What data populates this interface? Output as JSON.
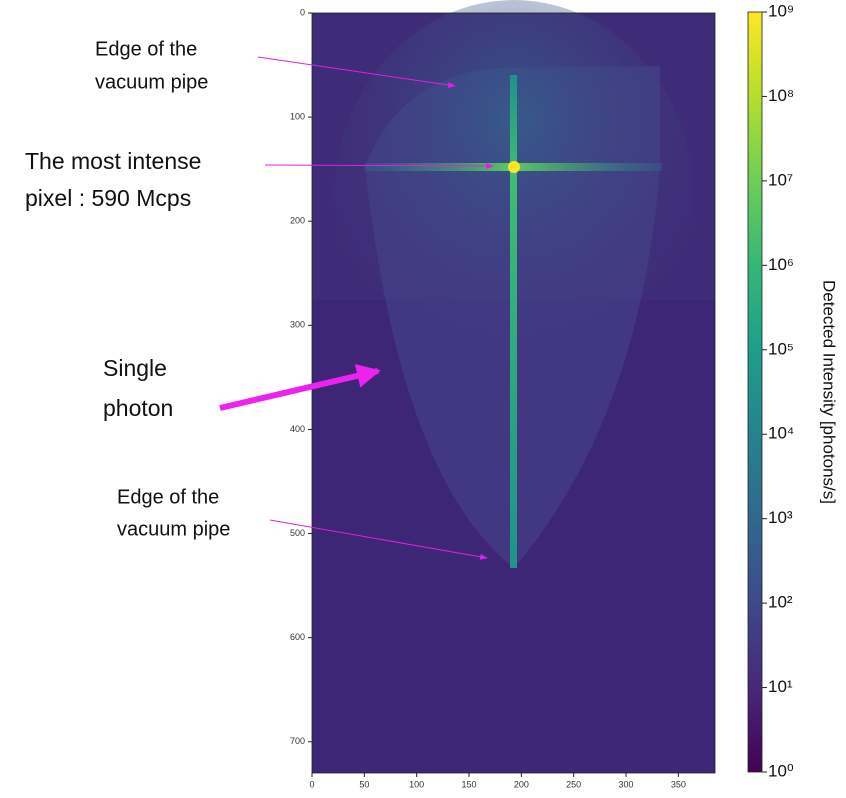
{
  "chart_data": {
    "type": "heatmap",
    "xlim": [
      0,
      385
    ],
    "ylim": [
      730,
      0
    ],
    "xticks": [
      0,
      50,
      100,
      150,
      200,
      250,
      300,
      350
    ],
    "yticks": [
      0,
      100,
      200,
      300,
      400,
      500,
      600,
      700
    ],
    "colormap": "viridis",
    "colorbar": {
      "label": "Detected Intensity [photons/s]",
      "scale": "log",
      "lim": [
        1,
        1000000000
      ],
      "ticks": [
        {
          "value": 1,
          "label": "10⁰"
        },
        {
          "value": 10,
          "label": "10¹"
        },
        {
          "value": 100,
          "label": "10²"
        },
        {
          "value": 1000,
          "label": "10³"
        },
        {
          "value": 10000,
          "label": "10⁴"
        },
        {
          "value": 100000,
          "label": "10⁵"
        },
        {
          "value": 1000000,
          "label": "10⁶"
        },
        {
          "value": 10000000,
          "label": "10⁷"
        },
        {
          "value": 100000000,
          "label": "10⁸"
        },
        {
          "value": 1000000000,
          "label": "10⁹"
        }
      ]
    },
    "annotations": [
      {
        "lines": [
          "Edge of the",
          "vacuum pipe"
        ]
      },
      {
        "lines": [
          "The most intense",
          "pixel : 590 Mcps"
        ]
      },
      {
        "lines": [
          "Single",
          "photon"
        ]
      },
      {
        "lines": [
          "Edge of the",
          "vacuum pipe"
        ]
      }
    ]
  }
}
